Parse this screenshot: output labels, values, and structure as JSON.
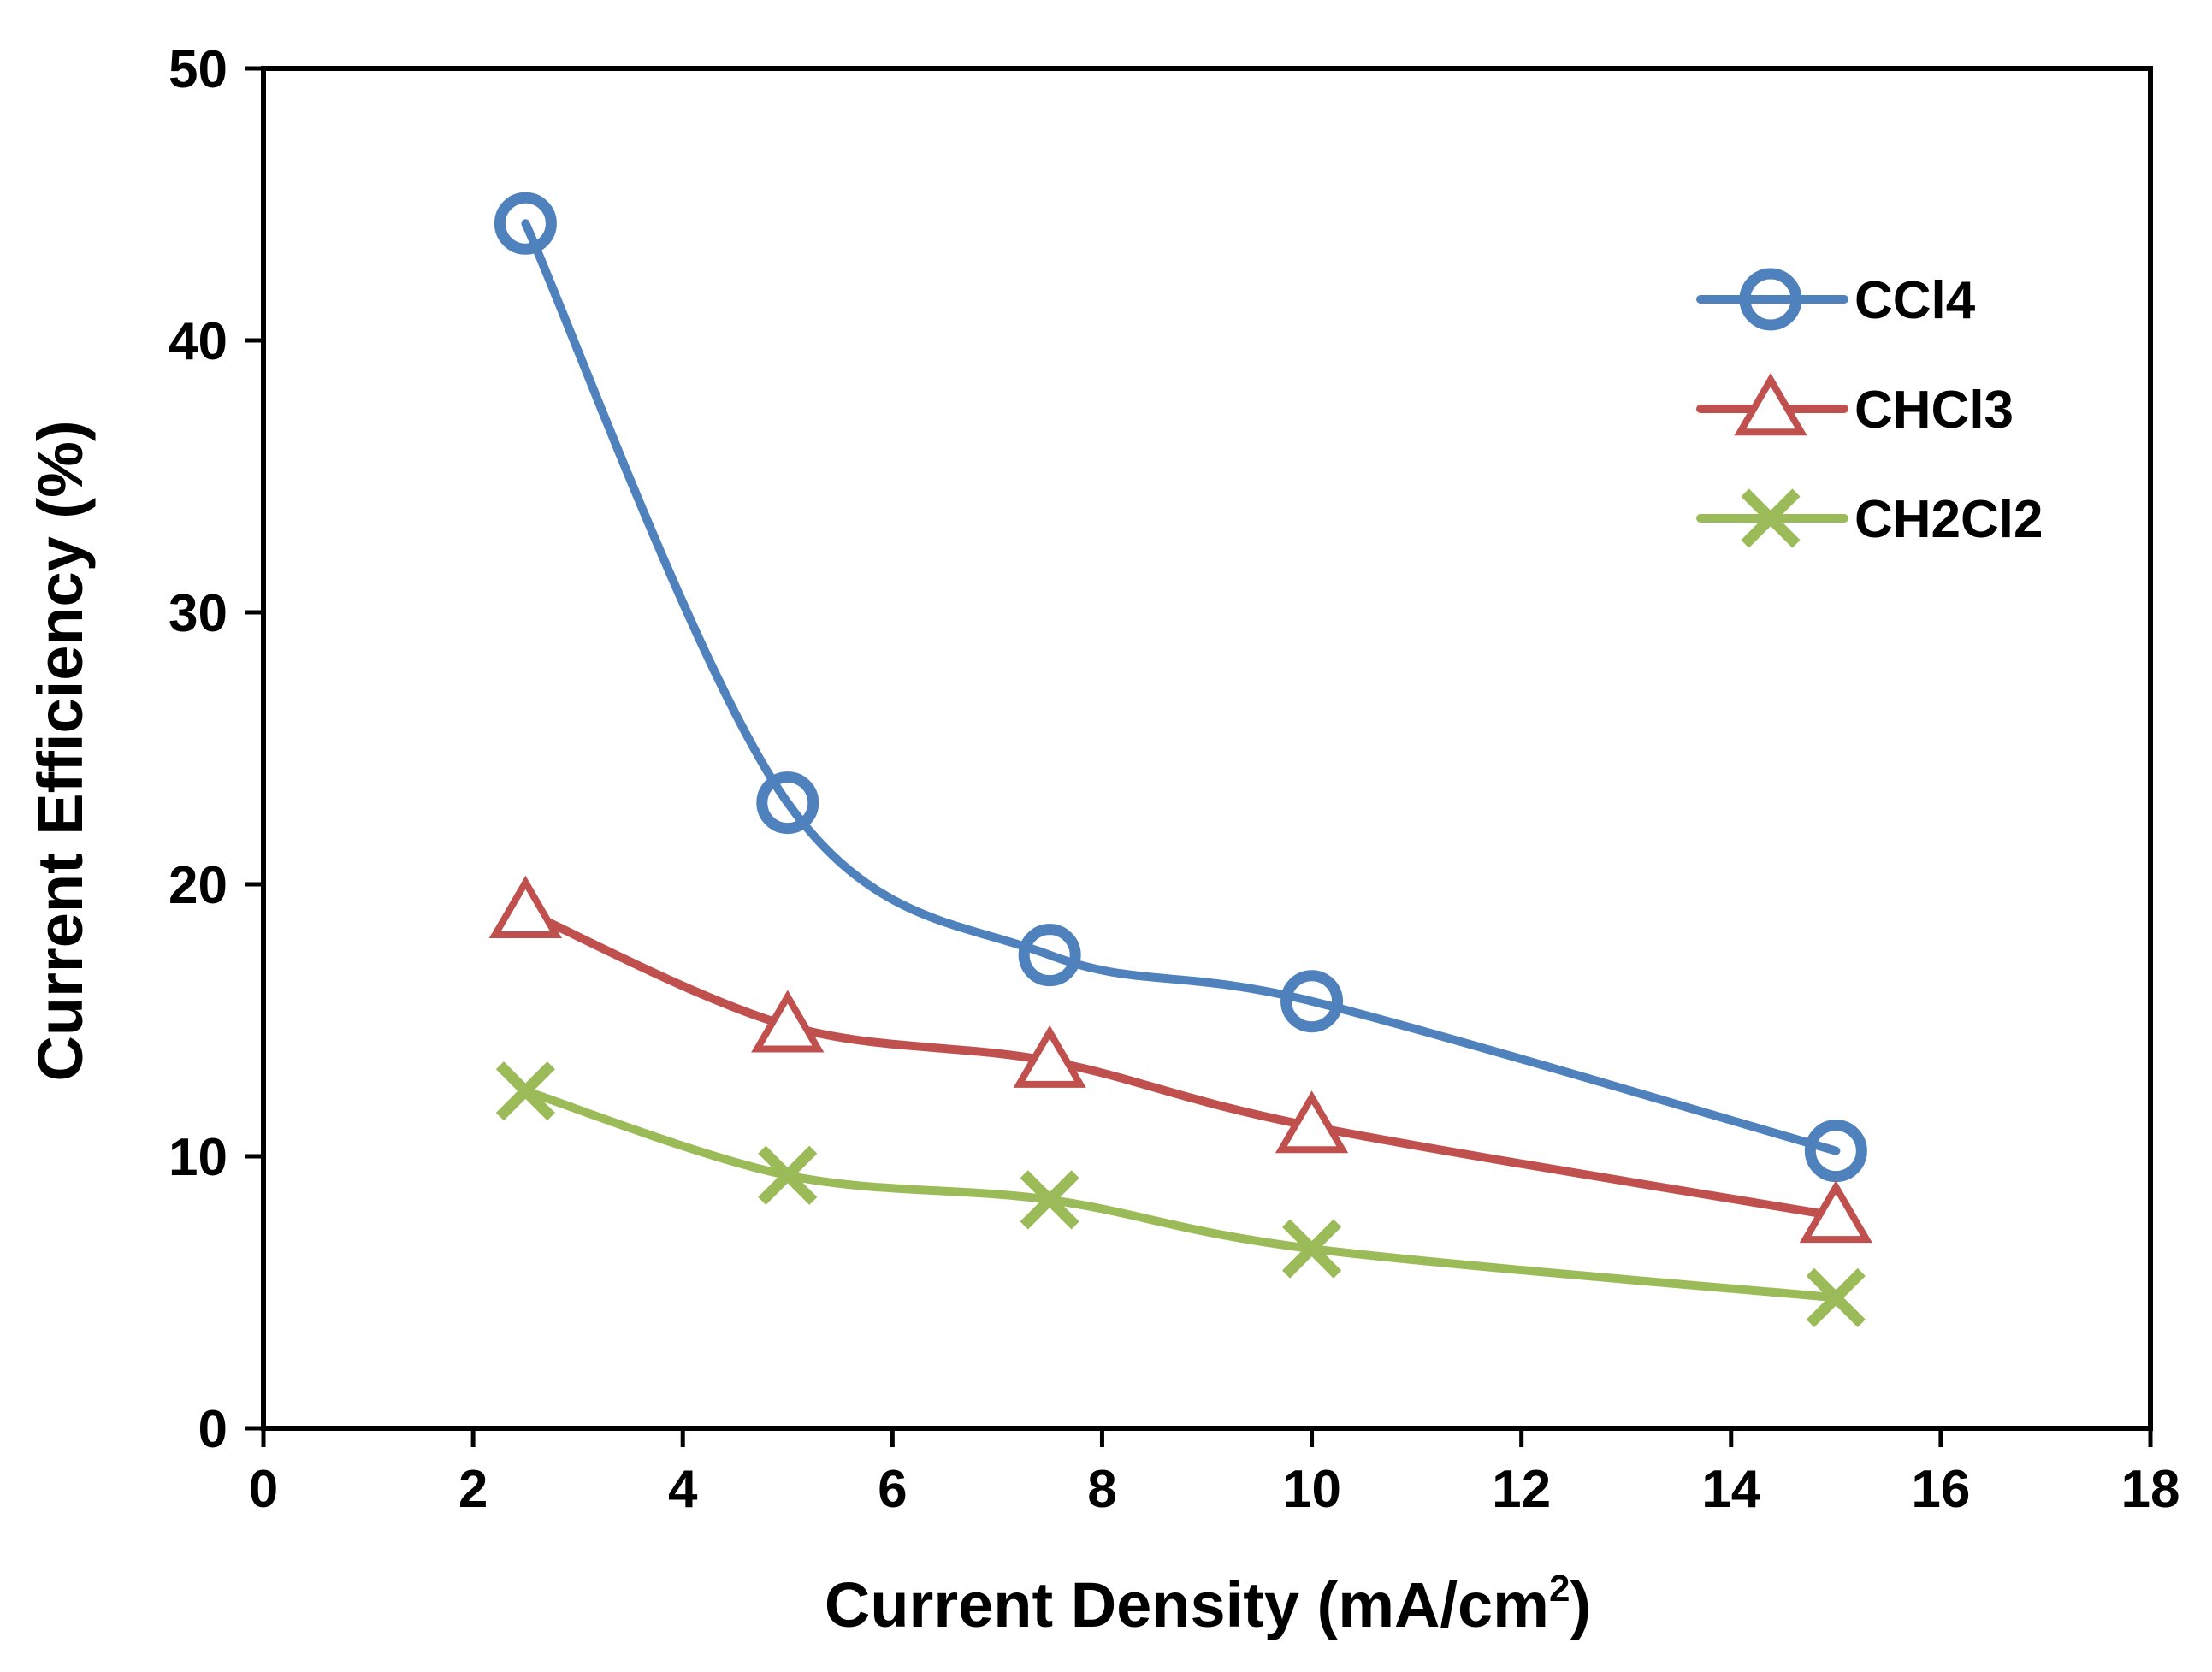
{
  "chart_data": {
    "type": "line",
    "title": "",
    "xlabel": "Current Density (mA/cm",
    "xlabel_superscript": "2",
    "xlabel_suffix": ")",
    "ylabel": "Current Efficiency (%)",
    "xlim": [
      0,
      18
    ],
    "ylim": [
      0,
      50
    ],
    "xticks": [
      "0",
      "2",
      "4",
      "6",
      "8",
      "10",
      "12",
      "14",
      "16",
      "18"
    ],
    "yticks": [
      "0",
      "10",
      "20",
      "30",
      "40",
      "50"
    ],
    "grid": false,
    "legend_position": "top-right",
    "x": [
      2.5,
      5,
      7.5,
      10,
      15
    ],
    "series": [
      {
        "name": "CCl4",
        "marker": "circle",
        "color": "#4F81BD",
        "values": [
          44.3,
          23.0,
          17.4,
          15.7,
          10.2
        ]
      },
      {
        "name": "CHCl3",
        "marker": "triangle",
        "color": "#C0504D",
        "values": [
          19.0,
          14.8,
          13.5,
          11.1,
          7.8
        ]
      },
      {
        "name": "CH2Cl2",
        "marker": "x",
        "color": "#9BBB59",
        "values": [
          12.4,
          9.3,
          8.4,
          6.6,
          4.8
        ]
      }
    ]
  }
}
